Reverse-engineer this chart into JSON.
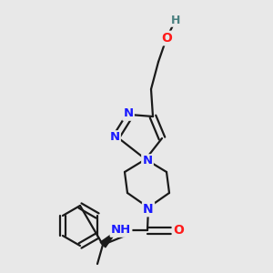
{
  "background_color": "#e8e8e8",
  "bond_color": "#1a1a1a",
  "bond_width": 1.6,
  "atom_colors": {
    "N": "#1a1aff",
    "O": "#ff1a1a",
    "H": "#4a8080",
    "C": "#1a1a1a"
  },
  "font_size_atom": 9.5,
  "font_size_small": 8.5
}
